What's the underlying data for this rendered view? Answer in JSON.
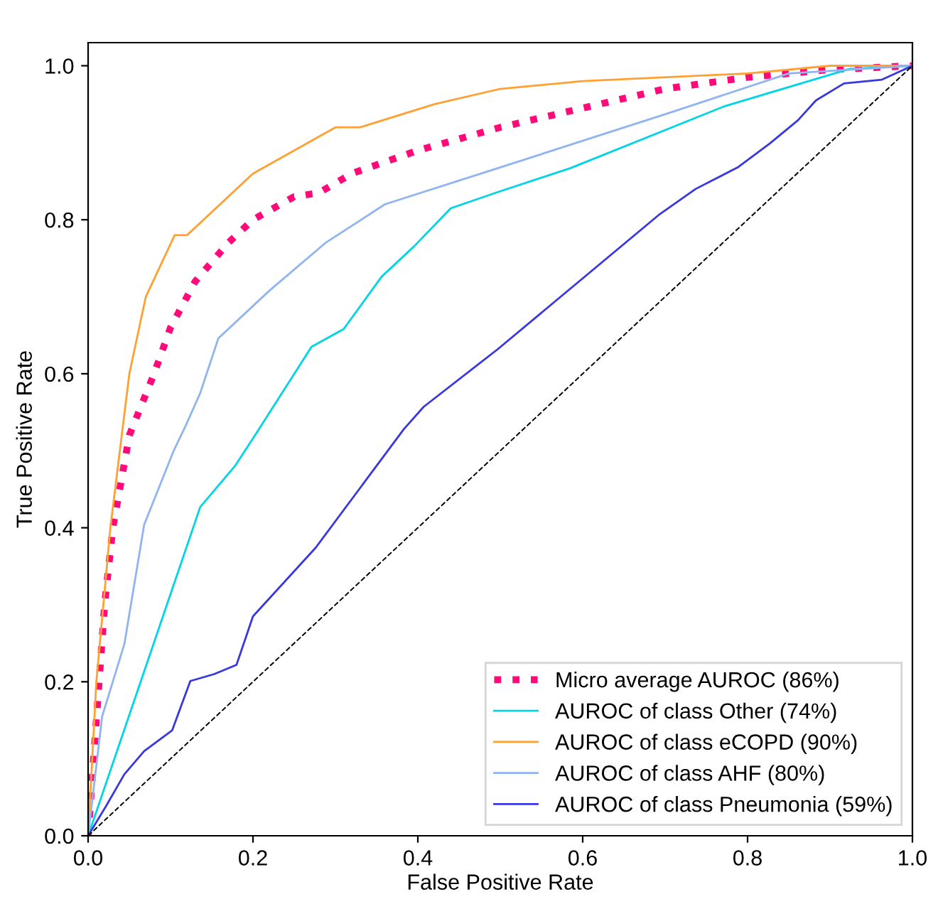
{
  "chart_data": {
    "type": "line",
    "xlabel": "False Positive Rate",
    "ylabel": "True Positive Rate",
    "xlim": [
      0,
      1
    ],
    "ylim": [
      0,
      1.03
    ],
    "xticks": [
      {
        "value": 0,
        "label": "0.0"
      },
      {
        "value": 0.2,
        "label": "0.2"
      },
      {
        "value": 0.4,
        "label": "0.4"
      },
      {
        "value": 0.6,
        "label": "0.6"
      },
      {
        "value": 0.8,
        "label": "0.8"
      },
      {
        "value": 1,
        "label": "1.0"
      }
    ],
    "yticks": [
      {
        "value": 0,
        "label": "0.0"
      },
      {
        "value": 0.2,
        "label": "0.2"
      },
      {
        "value": 0.4,
        "label": "0.4"
      },
      {
        "value": 0.6,
        "label": "0.6"
      },
      {
        "value": 0.8,
        "label": "0.8"
      },
      {
        "value": 1,
        "label": "1.0"
      }
    ],
    "legend": "bottom right",
    "grid": false,
    "series": [
      {
        "name": "Micro average AUROC (86%)",
        "color": "#ff0a78",
        "line_style": "dotted",
        "x": [
          0,
          0.01,
          0.02,
          0.03,
          0.05,
          0.08,
          0.1,
          0.13,
          0.17,
          0.2,
          0.25,
          0.28,
          0.32,
          0.4,
          0.5,
          0.6,
          0.7,
          0.8,
          0.9,
          1
        ],
        "values": [
          0,
          0.15,
          0.3,
          0.4,
          0.52,
          0.6,
          0.66,
          0.72,
          0.77,
          0.8,
          0.83,
          0.835,
          0.86,
          0.89,
          0.92,
          0.945,
          0.97,
          0.985,
          0.995,
          1
        ]
      },
      {
        "name": "AUROC of class Other (74%)",
        "color": "#00d5e8",
        "line_style": "solid",
        "x": [
          0,
          0.136,
          0.178,
          0.203,
          0.271,
          0.31,
          0.356,
          0.395,
          0.44,
          0.497,
          0.585,
          0.771,
          0.924,
          1
        ],
        "values": [
          0,
          0.427,
          0.48,
          0.521,
          0.635,
          0.658,
          0.726,
          0.765,
          0.815,
          0.836,
          0.867,
          0.947,
          0.996,
          1
        ]
      },
      {
        "name": "AUROC of class eCOPD (90%)",
        "color": "#ffa030",
        "line_style": "solid",
        "x": [
          0,
          0.01,
          0.027,
          0.05,
          0.07,
          0.105,
          0.12,
          0.14,
          0.2,
          0.3,
          0.33,
          0.42,
          0.5,
          0.6,
          0.8,
          0.9,
          1
        ],
        "values": [
          0,
          0.2,
          0.4,
          0.6,
          0.7,
          0.78,
          0.78,
          0.8,
          0.86,
          0.92,
          0.92,
          0.95,
          0.97,
          0.98,
          0.99,
          1,
          1
        ]
      },
      {
        "name": "AUROC of class AHF (80%)",
        "color": "#8fb4f0",
        "line_style": "solid",
        "x": [
          0,
          0.017,
          0.044,
          0.068,
          0.103,
          0.119,
          0.136,
          0.158,
          0.22,
          0.288,
          0.36,
          0.497,
          0.703,
          0.85,
          1
        ],
        "values": [
          0,
          0.155,
          0.249,
          0.404,
          0.498,
          0.534,
          0.575,
          0.646,
          0.708,
          0.77,
          0.82,
          0.867,
          0.938,
          0.99,
          1
        ]
      },
      {
        "name": "AUROC of class Pneumonia (59%)",
        "color": "#3838e0",
        "line_style": "solid",
        "x": [
          0,
          0.022,
          0.044,
          0.068,
          0.102,
          0.124,
          0.153,
          0.18,
          0.2,
          0.276,
          0.383,
          0.407,
          0.497,
          0.692,
          0.737,
          0.788,
          0.827,
          0.861,
          0.883,
          0.917,
          0.963,
          1
        ],
        "values": [
          0,
          0.039,
          0.08,
          0.11,
          0.137,
          0.201,
          0.21,
          0.222,
          0.285,
          0.374,
          0.528,
          0.557,
          0.632,
          0.806,
          0.84,
          0.868,
          0.899,
          0.929,
          0.955,
          0.977,
          0.982,
          1
        ]
      },
      {
        "color": "#000000",
        "line_style": "dashed",
        "x": [
          0,
          1
        ],
        "values": [
          0,
          1
        ]
      }
    ]
  }
}
